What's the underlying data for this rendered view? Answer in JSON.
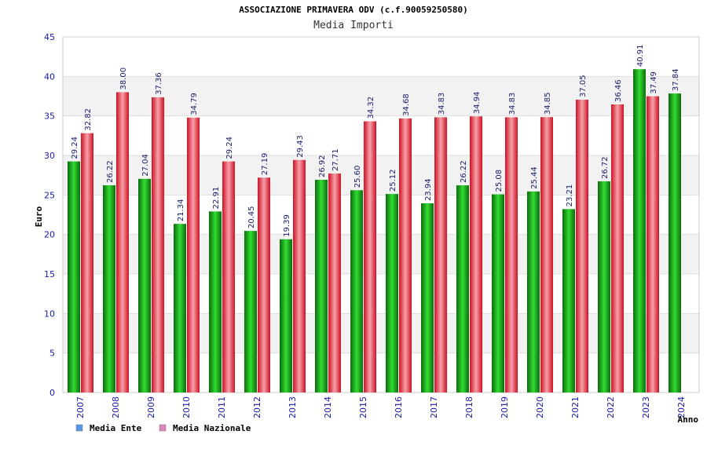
{
  "chart_data": {
    "type": "bar",
    "title": "ASSOCIAZIONE PRIMAVERA ODV (c.f.90059250580)",
    "subtitle": "Media Importi",
    "xlabel": "Anno",
    "ylabel": "Euro",
    "ylim": [
      0,
      45
    ],
    "yticks": [
      0,
      5,
      10,
      15,
      20,
      25,
      30,
      35,
      40,
      45
    ],
    "grid": true,
    "legend_position": "bottom-left",
    "categories": [
      "2007",
      "2008",
      "2009",
      "2010",
      "2011",
      "2012",
      "2013",
      "2014",
      "2015",
      "2016",
      "2017",
      "2018",
      "2019",
      "2020",
      "2021",
      "2022",
      "2023",
      "2024"
    ],
    "series": [
      {
        "name": "Media Ente",
        "color": "#22bb22",
        "legend_color": "#5599ee",
        "values": [
          29.24,
          26.22,
          27.04,
          21.34,
          22.91,
          20.45,
          19.39,
          26.92,
          25.6,
          25.12,
          23.94,
          26.22,
          25.08,
          25.44,
          23.21,
          26.72,
          40.91,
          37.84
        ],
        "labels": [
          "29.24",
          "26.22",
          "27.04",
          "21.34",
          "22.91",
          "20.45",
          "19.39",
          "26.92",
          "25.60",
          "25.12",
          "23.94",
          "26.22",
          "25.08",
          "25.44",
          "23.21",
          "26.72",
          "40.91",
          "37.84"
        ]
      },
      {
        "name": "Media Nazionale",
        "color": "#ee3344",
        "legend_color": "#dd88bb",
        "values": [
          32.82,
          38.0,
          37.36,
          34.79,
          29.24,
          27.19,
          29.43,
          27.71,
          34.32,
          34.68,
          34.83,
          34.94,
          34.83,
          34.85,
          37.05,
          36.46,
          37.49,
          null
        ],
        "labels": [
          "32.82",
          "38.00",
          "37.36",
          "34.79",
          "29.24",
          "27.19",
          "29.43",
          "27.71",
          "34.32",
          "34.68",
          "34.83",
          "34.94",
          "34.83",
          "34.85",
          "37.05",
          "36.46",
          "37.49",
          ""
        ]
      }
    ]
  }
}
